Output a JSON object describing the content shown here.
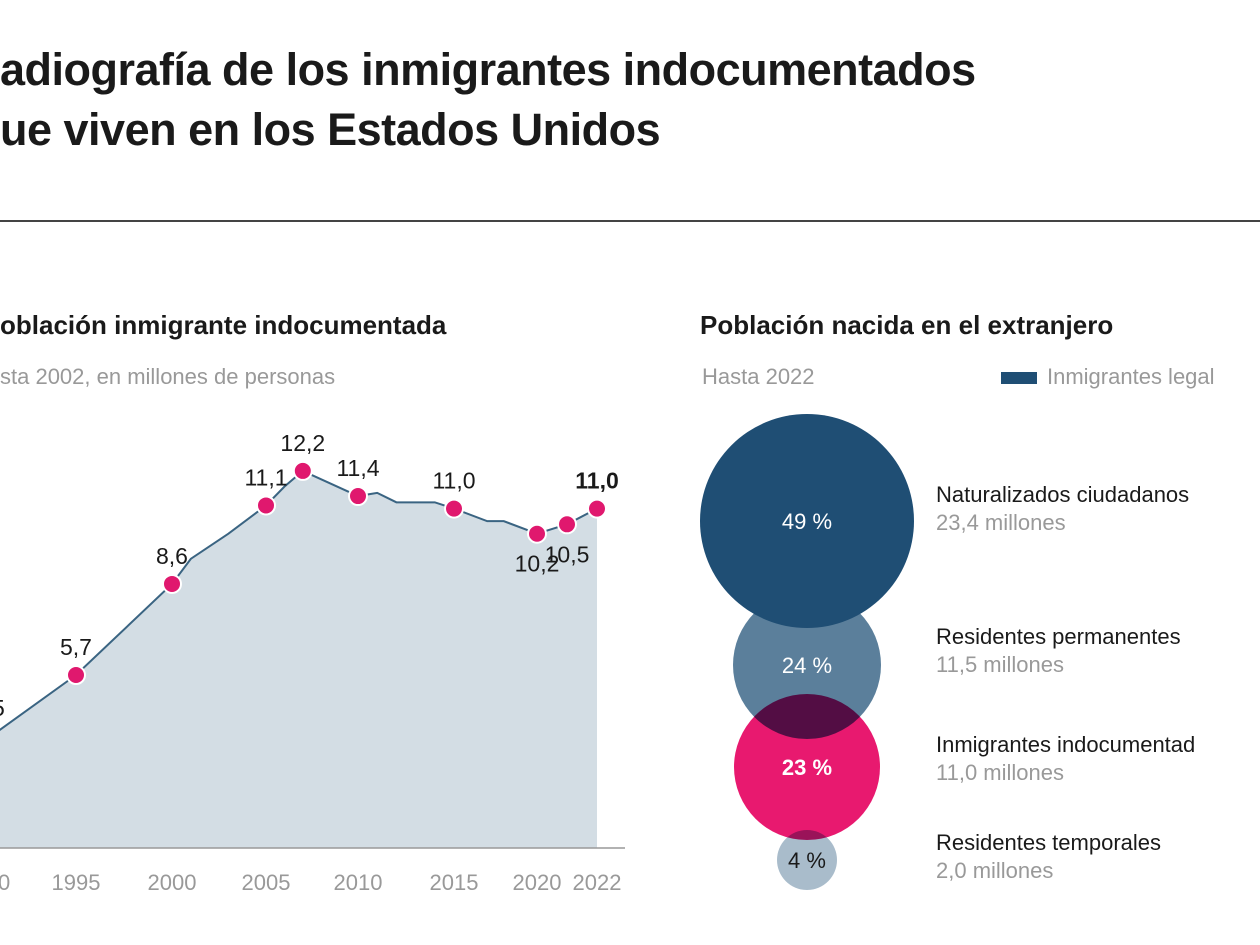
{
  "header": {
    "title_line1": "adiografía de los inmigrantes indocumentados",
    "title_line2": "ue viven en los Estados Unidos"
  },
  "colors": {
    "area_fill": "#d3dde4",
    "line": "#3a6482",
    "marker": "#e0186e",
    "dark_blue": "#1f4e74",
    "mid_blue": "#5b7f9b",
    "pink": "#e8196f",
    "light_blue": "#a9bccb"
  },
  "chart_data": [
    {
      "type": "area",
      "title": "oblación inmigrante indocumentada",
      "subtitle": "sta 2002, en millones de personas",
      "xlabel": "",
      "ylabel": "",
      "x_ticks": [
        "0",
        "1995",
        "2000",
        "2005",
        "2010",
        "2015",
        "2020",
        "2022"
      ],
      "points": [
        {
          "x": 1990,
          "y": 3.5,
          "label": "5",
          "marker": false
        },
        {
          "x": 1995,
          "y": 5.7,
          "label": "5,7",
          "marker": true
        },
        {
          "x": 2000,
          "y": 8.6,
          "label": "8,6",
          "marker": true
        },
        {
          "x": 2001,
          "y": 9.4
        },
        {
          "x": 2003,
          "y": 10.2
        },
        {
          "x": 2005,
          "y": 11.1,
          "label": "11,1",
          "marker": true
        },
        {
          "x": 2006,
          "y": 11.7
        },
        {
          "x": 2007,
          "y": 12.2,
          "label": "12,2",
          "marker": true
        },
        {
          "x": 2010,
          "y": 11.4,
          "label": "11,4",
          "marker": true
        },
        {
          "x": 2011,
          "y": 11.5
        },
        {
          "x": 2012,
          "y": 11.2
        },
        {
          "x": 2014,
          "y": 11.2
        },
        {
          "x": 2015,
          "y": 11.0,
          "label": "11,0",
          "marker": true
        },
        {
          "x": 2017,
          "y": 10.6
        },
        {
          "x": 2018,
          "y": 10.6
        },
        {
          "x": 2020,
          "y": 10.2,
          "label": "10,2",
          "marker": true,
          "below": true
        },
        {
          "x": 2021,
          "y": 10.5,
          "label": "10,5",
          "marker": true,
          "below": true
        },
        {
          "x": 2022,
          "y": 11.0,
          "label": "11,0",
          "marker": true,
          "bold": true
        }
      ]
    },
    {
      "type": "bubble",
      "title": "Población nacida en el extranjero",
      "subtitle": "Hasta 2022",
      "legend": "Inmigrantes legal",
      "items": [
        {
          "percent": "49 %",
          "share": 49,
          "name": "Naturalizados ciudadanos",
          "value": "23,4 millones",
          "color": "#1f4e74"
        },
        {
          "percent": "24 %",
          "share": 24,
          "name": "Residentes permanentes",
          "value": "11,5 millones",
          "color": "#5b7f9b"
        },
        {
          "percent": "23 %",
          "share": 23,
          "name": "Inmigrantes indocumentad",
          "value": "11,0 millones",
          "color": "#e8196f"
        },
        {
          "percent": "4 %",
          "share": 4,
          "name": "Residentes temporales",
          "value": "2,0 millones",
          "color": "#a9bccb"
        }
      ]
    }
  ]
}
